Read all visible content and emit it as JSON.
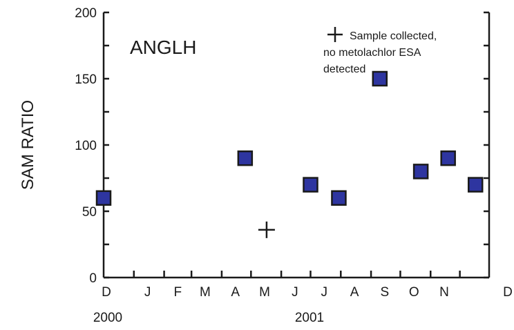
{
  "chart_data": {
    "type": "scatter",
    "site": "ANGLH",
    "ylabel": "SAM RATIO",
    "ylim": [
      0,
      200
    ],
    "y_major_ticks": [
      0,
      50,
      100,
      150,
      200
    ],
    "x_month_labels": [
      "D",
      "J",
      "F",
      "M",
      "A",
      "M",
      "J",
      "J",
      "A",
      "S",
      "O",
      "N",
      "D"
    ],
    "x_year_labels": [
      "2000",
      "2001"
    ],
    "series": [
      {
        "marker": "square",
        "color": "#2e35a0",
        "points": [
          {
            "x": "2000-12-01",
            "y": 60
          },
          {
            "x": "2001-04-25",
            "y": 90
          },
          {
            "x": "2001-07-01",
            "y": 70
          },
          {
            "x": "2001-07-30",
            "y": 60
          },
          {
            "x": "2001-09-10",
            "y": 150
          },
          {
            "x": "2001-10-22",
            "y": 80
          },
          {
            "x": "2001-11-19",
            "y": 90
          },
          {
            "x": "2001-12-17",
            "y": 70
          }
        ]
      },
      {
        "marker": "plus",
        "points": [
          {
            "x": "2001-05-17",
            "y": 36
          }
        ]
      }
    ],
    "legend": {
      "symbol": "plus",
      "lines": [
        "Sample collected,",
        "no metolachlor ESA",
        "detected"
      ]
    }
  }
}
